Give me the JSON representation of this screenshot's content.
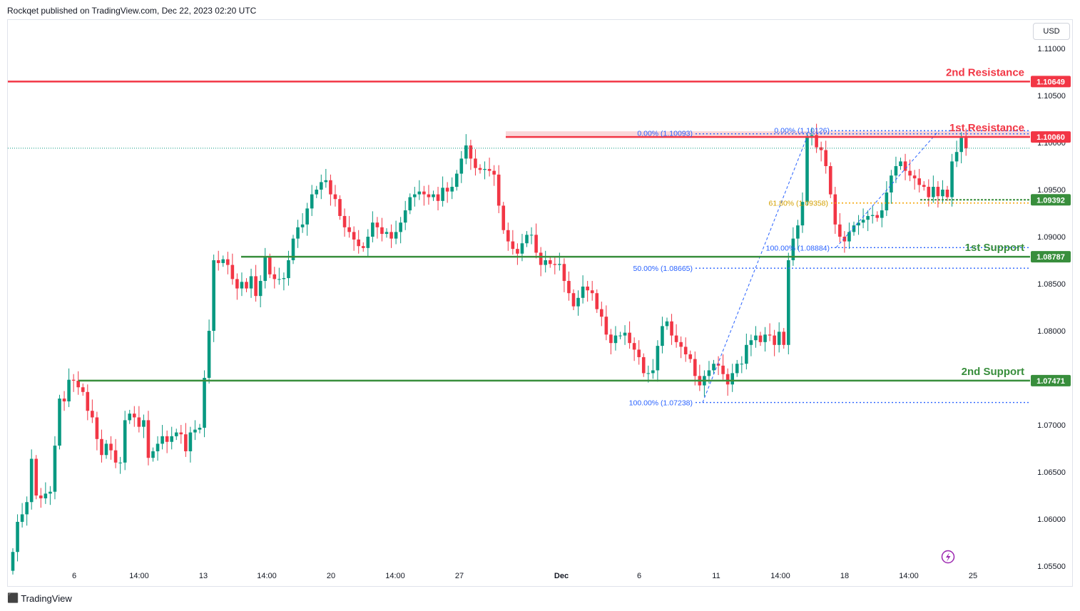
{
  "header": {
    "attribution": "Rockqet published on TradingView.com, Dec 22, 2023 02:20 UTC"
  },
  "footer": {
    "brand": "TradingView",
    "logo_icon": "tradingview-logo-icon"
  },
  "currency_button": "USD",
  "colors": {
    "up": "#089981",
    "down": "#f23645",
    "resistance": "#f23645",
    "support": "#388e3c",
    "fib": "#2962ff",
    "fib_618": "#f4a300",
    "zone": "#f8c8cc"
  },
  "levels": {
    "resistance_2": {
      "label": "2nd Resistance",
      "price": "1.10649"
    },
    "resistance_1": {
      "label": "1st Resistance",
      "price": "1.10060"
    },
    "support_1": {
      "label": "1st Support",
      "price": "1.08787"
    },
    "support_2": {
      "label": "2nd Support",
      "price": "1.07471"
    },
    "current_price": "1.09392"
  },
  "fib_labels": {
    "a0": "0.00% (1.10093)",
    "b0": "0.00% (1.10126)",
    "b618": "61.80% (1.09358)",
    "b100": "100.00% (1.08884)",
    "a50": "50.00% (1.08665)",
    "a100": "100.00% (1.07238)"
  },
  "chart_data": {
    "type": "candlestick",
    "symbol_currency": "USD",
    "y_ticks": [
      "1.11000",
      "1.10500",
      "1.10000",
      "1.09500",
      "1.09000",
      "1.08500",
      "1.08000",
      "1.07500",
      "1.07000",
      "1.06500",
      "1.06000",
      "1.05500"
    ],
    "x_ticks": [
      "6",
      "14:00",
      "13",
      "14:00",
      "20",
      "14:00",
      "27",
      "Dec",
      "6",
      "11",
      "14:00",
      "18",
      "14:00",
      "25"
    ],
    "price_range": [
      1.0548,
      1.1125
    ],
    "levels": [
      {
        "name": "2nd Resistance",
        "price": 1.10649
      },
      {
        "name": "1st Resistance",
        "price": 1.1006
      },
      {
        "name": "1st Support",
        "price": 1.08787
      },
      {
        "name": "2nd Support",
        "price": 1.07471
      }
    ],
    "fibonacci": [
      {
        "level": "0.00%",
        "price": 1.10093
      },
      {
        "level": "50.00%",
        "price": 1.08665
      },
      {
        "level": "100.00%",
        "price": 1.07238
      },
      {
        "level": "0.00%",
        "price": 1.10126
      },
      {
        "level": "61.80%",
        "price": 1.09358
      },
      {
        "level": "100.00%",
        "price": 1.08884
      }
    ],
    "closes": [
      1.0565,
      1.0597,
      1.0605,
      1.0618,
      1.0664,
      1.0625,
      1.0622,
      1.0627,
      1.0629,
      1.0678,
      1.0728,
      1.0725,
      1.0748,
      1.0747,
      1.074,
      1.0735,
      1.0715,
      1.0708,
      1.0685,
      1.0668,
      1.068,
      1.0673,
      1.066,
      1.066,
      1.0705,
      1.0712,
      1.0708,
      1.0698,
      1.0705,
      1.0665,
      1.0672,
      1.068,
      1.0688,
      1.0682,
      1.0688,
      1.0692,
      1.069,
      1.0672,
      1.0692,
      1.0695,
      1.0697,
      1.075,
      1.08,
      1.0875,
      1.0872,
      1.0876,
      1.087,
      1.0855,
      1.0845,
      1.0852,
      1.0845,
      1.0858,
      1.0837,
      1.0853,
      1.0878,
      1.086,
      1.0855,
      1.0855,
      1.0856,
      1.0875,
      1.0898,
      1.091,
      1.0913,
      1.093,
      1.0945,
      1.095,
      1.0958,
      1.096,
      1.0945,
      1.094,
      1.0922,
      1.091,
      1.0905,
      1.0897,
      1.089,
      1.0888,
      1.09,
      1.0915,
      1.091,
      1.0903,
      1.0905,
      1.0898,
      1.0905,
      1.0915,
      1.0928,
      1.0942,
      1.0945,
      1.0948,
      1.0945,
      1.0942,
      1.0945,
      1.0938,
      1.0952,
      1.0948,
      1.0953,
      1.0967,
      1.0983,
      1.0997,
      1.0983,
      1.0973,
      1.0971,
      1.0972,
      1.097,
      1.0966,
      1.0933,
      1.0907,
      1.0895,
      1.0887,
      1.0882,
      1.0893,
      1.0902,
      1.0902,
      1.0883,
      1.087,
      1.0875,
      1.0871,
      1.087,
      1.0871,
      1.0853,
      1.084,
      1.0826,
      1.0835,
      1.0847,
      1.0843,
      1.084,
      1.0823,
      1.0815,
      1.0796,
      1.0787,
      1.0795,
      1.0795,
      1.0798,
      1.0787,
      1.078,
      1.0772,
      1.0755,
      1.0755,
      1.0758,
      1.0784,
      1.0805,
      1.081,
      1.0795,
      1.0788,
      1.0783,
      1.0775,
      1.077,
      1.0752,
      1.0742,
      1.0752,
      1.0758,
      1.0765,
      1.0763,
      1.0754,
      1.0743,
      1.0755,
      1.0765,
      1.0765,
      1.0785,
      1.079,
      1.0795,
      1.0788,
      1.0796,
      1.0795,
      1.0785,
      1.0799,
      1.0785,
      1.0875,
      1.0898,
      1.0912,
      1.0937,
      1.1007,
      1.1008,
      1.0995,
      1.0992,
      1.0975,
      1.0945,
      1.0913,
      1.09,
      1.0895,
      1.0905,
      1.0912,
      1.0915,
      1.0918,
      1.0922,
      1.0923,
      1.092,
      1.0928,
      1.0947,
      1.0965,
      1.0975,
      1.098,
      1.097,
      1.0965,
      1.0962,
      1.0955,
      1.0953,
      1.0942,
      1.0953,
      1.0943,
      1.095,
      1.0942,
      1.098,
      1.099,
      1.1005,
      1.0994
    ]
  }
}
